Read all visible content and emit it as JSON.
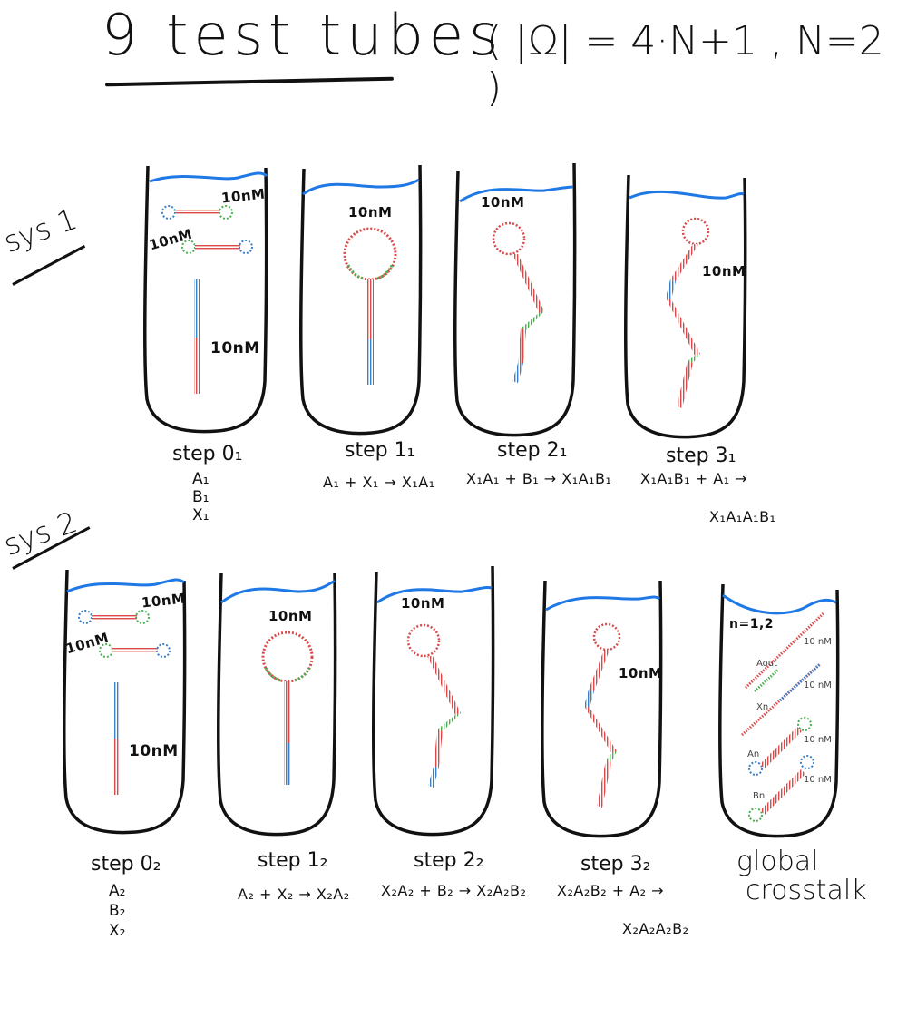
{
  "header": {
    "title": "9 test tubes",
    "formula": "( |Ω| = 4·N+1 , N=2 )"
  },
  "systems": [
    {
      "label": "sys 1"
    },
    {
      "label": "sys 2"
    }
  ],
  "conc_label": "10nM",
  "conc_label_spaced": "10 nM",
  "sys1": {
    "steps": [
      {
        "title": "step 0₁",
        "species": [
          "A₁",
          "B₁",
          "X₁"
        ]
      },
      {
        "title": "step 1₁",
        "reaction": "A₁ + X₁ → X₁A₁"
      },
      {
        "title": "step 2₁",
        "reaction": "X₁A₁ + B₁ → X₁A₁B₁"
      },
      {
        "title": "step 3₁",
        "reaction": "X₁A₁B₁ + A₁ →",
        "product": "X₁A₁A₁B₁"
      }
    ]
  },
  "sys2": {
    "steps": [
      {
        "title": "step 0₂",
        "species": [
          "A₂",
          "B₂",
          "X₂"
        ]
      },
      {
        "title": "step 1₂",
        "reaction": "A₂ + X₂ → X₂A₂"
      },
      {
        "title": "step 2₂",
        "reaction": "X₂A₂ + B₂ → X₂A₂B₂"
      },
      {
        "title": "step 3₂",
        "reaction": "X₂A₂B₂ + A₂ →",
        "product": "X₂A₂A₂B₂"
      }
    ]
  },
  "global": {
    "n_label": "n=1,2",
    "species": [
      "Aout",
      "Xn",
      "An",
      "Bn"
    ],
    "title_line1": "global",
    "title_line2": "crosstalk"
  },
  "colors": {
    "water": "#1e78e6",
    "red": "#d94b4b",
    "green": "#4caf50",
    "blue": "#3a7fc8",
    "ink": "#111111"
  }
}
